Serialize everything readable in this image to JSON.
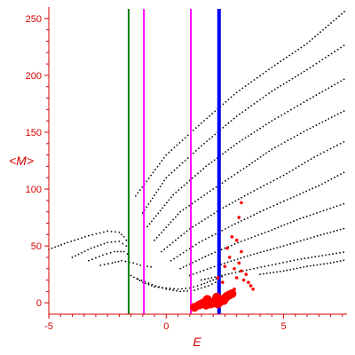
{
  "chart_data": {
    "type": "scatter",
    "xlabel": "E",
    "ylabel": "<M>",
    "xlim": [
      -5,
      7.7
    ],
    "ylim": [
      -10,
      260
    ],
    "x_ticks": [
      -5,
      0,
      5
    ],
    "y_ticks": [
      0,
      50,
      100,
      150,
      200,
      250
    ],
    "grid": false,
    "colors": {
      "axis": "#d40000",
      "dots": "#000000",
      "red_points": "#ff0000",
      "green_line": "#008000",
      "magenta_line": "#ff00ff",
      "blue_line": "#0000ff"
    },
    "vertical_lines": [
      {
        "x": -1.6,
        "color": "#008000"
      },
      {
        "x": -0.95,
        "color": "#ff00ff"
      },
      {
        "x": 1.05,
        "color": "#ff00ff"
      },
      {
        "x": 2.25,
        "color": "#0000ff"
      }
    ],
    "curves": [
      {
        "points": [
          [
            -5,
            47
          ],
          [
            -4.2,
            53
          ],
          [
            -3.3,
            59
          ],
          [
            -2.5,
            63
          ],
          [
            -2,
            62
          ],
          [
            -1.8,
            58
          ],
          [
            -1.6,
            52
          ]
        ]
      },
      {
        "points": [
          [
            -4,
            40
          ],
          [
            -3.2,
            48
          ],
          [
            -2.5,
            53
          ],
          [
            -2,
            54
          ],
          [
            -1.7,
            50
          ],
          [
            -1.5,
            44
          ]
        ]
      },
      {
        "points": [
          [
            -3.3,
            37
          ],
          [
            -2.7,
            42
          ],
          [
            -2.2,
            45
          ],
          [
            -1.8,
            45
          ],
          [
            -1.5,
            41
          ]
        ]
      },
      {
        "points": [
          [
            -2.8,
            33
          ],
          [
            -2.3,
            35
          ],
          [
            -1.9,
            37
          ],
          [
            -1.4,
            35
          ]
        ]
      },
      {
        "points": [
          [
            -1.4,
            35
          ],
          [
            -1.1,
            33
          ],
          [
            -0.8,
            32
          ],
          [
            -0.5,
            31
          ]
        ]
      },
      {
        "points": [
          [
            -1.3,
            94
          ],
          [
            0,
            130
          ],
          [
            1.5,
            158
          ],
          [
            3,
            185
          ],
          [
            4.5,
            207
          ],
          [
            6,
            228
          ],
          [
            7.7,
            258
          ]
        ]
      },
      {
        "points": [
          [
            -1,
            79
          ],
          [
            0,
            110
          ],
          [
            1.5,
            138
          ],
          [
            3,
            164
          ],
          [
            4.5,
            186
          ],
          [
            6,
            205
          ],
          [
            7.7,
            228
          ]
        ]
      },
      {
        "points": [
          [
            -0.8,
            67
          ],
          [
            0.3,
            95
          ],
          [
            1.7,
            120
          ],
          [
            3,
            140
          ],
          [
            4.5,
            160
          ],
          [
            6,
            178
          ],
          [
            7.7,
            198
          ]
        ]
      },
      {
        "points": [
          [
            -0.5,
            55
          ],
          [
            0.6,
            80
          ],
          [
            2,
            100
          ],
          [
            3.3,
            118
          ],
          [
            4.5,
            135
          ],
          [
            6,
            152
          ],
          [
            7.7,
            170
          ]
        ]
      },
      {
        "points": [
          [
            -0.2,
            45
          ],
          [
            1,
            65
          ],
          [
            2.3,
            82
          ],
          [
            3.6,
            97
          ],
          [
            5,
            112
          ],
          [
            6.3,
            128
          ],
          [
            7.7,
            143
          ]
        ]
      },
      {
        "points": [
          [
            0.2,
            37
          ],
          [
            1.4,
            53
          ],
          [
            2.8,
            68
          ],
          [
            4,
            80
          ],
          [
            5.3,
            92
          ],
          [
            6.5,
            103
          ],
          [
            7.7,
            116
          ]
        ]
      },
      {
        "points": [
          [
            0.6,
            30
          ],
          [
            1.8,
            42
          ],
          [
            3.2,
            54
          ],
          [
            4.5,
            64
          ],
          [
            5.7,
            74
          ],
          [
            7.7,
            88
          ]
        ]
      },
      {
        "points": [
          [
            1,
            24
          ],
          [
            2.2,
            33
          ],
          [
            3.6,
            42
          ],
          [
            5,
            50
          ],
          [
            6.3,
            58
          ],
          [
            7.7,
            66
          ]
        ]
      },
      {
        "points": [
          [
            1.5,
            20
          ],
          [
            2.8,
            26
          ],
          [
            4.2,
            32
          ],
          [
            5.6,
            38
          ],
          [
            7.7,
            45
          ]
        ]
      },
      {
        "points": [
          [
            -1.5,
            24
          ],
          [
            -1,
            18
          ],
          [
            -0.5,
            14
          ],
          [
            0,
            13
          ],
          [
            0.5,
            12
          ],
          [
            1,
            13
          ],
          [
            1.5,
            16
          ],
          [
            2,
            20
          ],
          [
            2.5,
            24
          ]
        ]
      },
      {
        "points": [
          [
            -1.2,
            21
          ],
          [
            -0.6,
            16
          ],
          [
            0,
            12
          ],
          [
            0.6,
            10
          ],
          [
            1.2,
            11
          ],
          [
            1.8,
            15
          ],
          [
            2.4,
            21
          ]
        ]
      },
      {
        "points": [
          [
            4,
            25
          ],
          [
            5,
            28
          ],
          [
            6,
            32
          ],
          [
            7,
            35
          ],
          [
            7.7,
            38
          ]
        ]
      }
    ],
    "red_points": [
      [
        1.5,
        -1
      ],
      [
        1.6,
        0
      ],
      [
        1.7,
        -2
      ],
      [
        1.8,
        1
      ],
      [
        1.9,
        -1
      ],
      [
        2,
        0
      ],
      [
        2.1,
        2
      ],
      [
        2.2,
        -1
      ],
      [
        2.3,
        1
      ],
      [
        2.4,
        3
      ],
      [
        2.5,
        4
      ],
      [
        2.6,
        6
      ],
      [
        2.7,
        7
      ],
      [
        2.8,
        8
      ],
      [
        1.4,
        -2
      ],
      [
        1.2,
        -4
      ],
      [
        2.55,
        5
      ],
      [
        2.45,
        2
      ],
      [
        1.75,
        3
      ],
      [
        2.15,
        5
      ],
      [
        2.6,
        48
      ],
      [
        2.7,
        40
      ],
      [
        2.9,
        30
      ],
      [
        3.0,
        22
      ],
      [
        3.1,
        35
      ],
      [
        3.2,
        28
      ],
      [
        3.3,
        20
      ],
      [
        3.4,
        25
      ],
      [
        3.5,
        18
      ],
      [
        3.6,
        15
      ],
      [
        3.0,
        55
      ],
      [
        3.2,
        45
      ],
      [
        2.8,
        58
      ],
      [
        2.5,
        32
      ],
      [
        2.4,
        18
      ],
      [
        3.7,
        12
      ],
      [
        3.1,
        75
      ],
      [
        3.2,
        88
      ],
      [
        2.9,
        12
      ],
      [
        2.2,
        22
      ]
    ]
  }
}
